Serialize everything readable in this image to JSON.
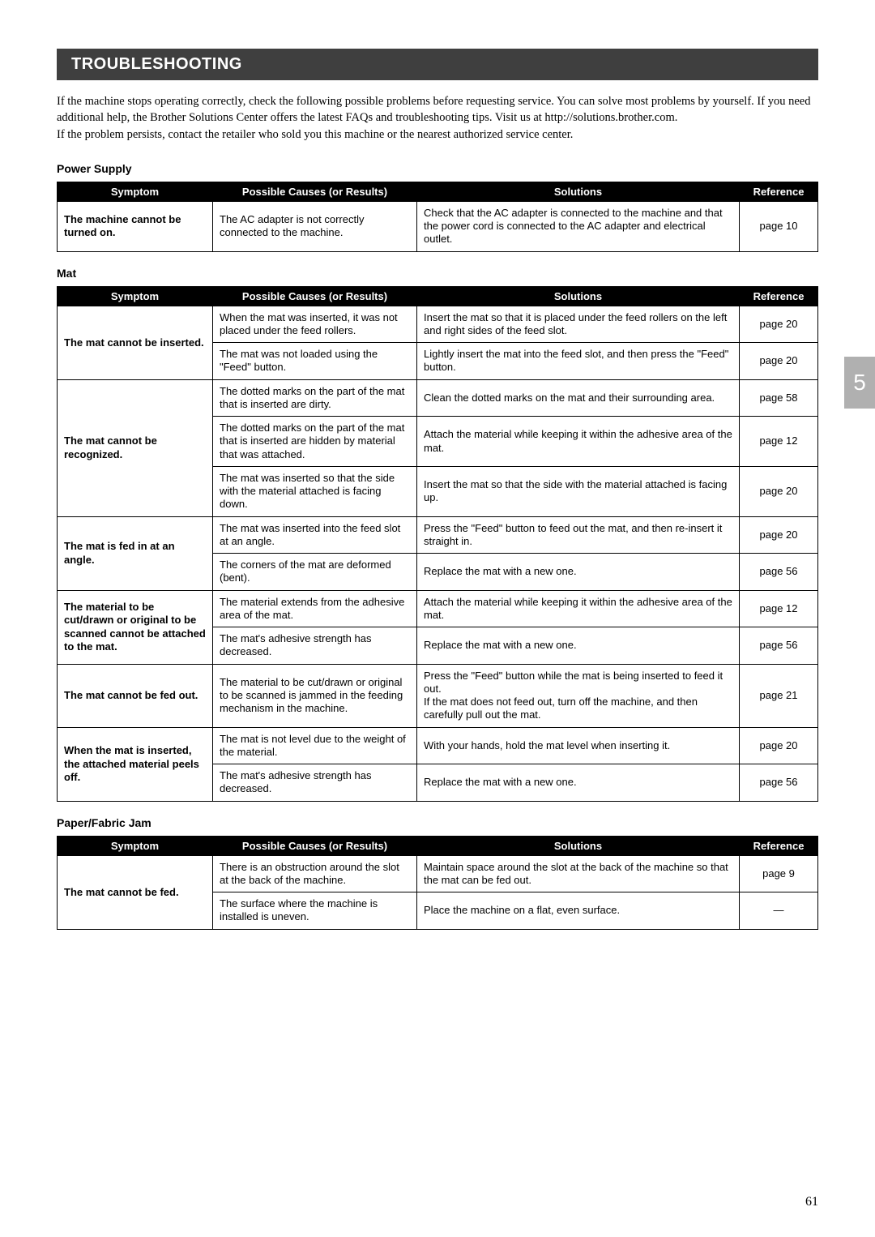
{
  "title": "TROUBLESHOOTING",
  "intro": "If the machine stops operating correctly, check the following possible problems before requesting service. You can solve most problems by yourself. If you need additional help, the Brother Solutions Center offers the latest FAQs and troubleshooting tips. Visit us at http://solutions.brother.com.\nIf the problem persists, contact the retailer who sold you this machine or the nearest authorized service center.",
  "headers": {
    "symptom": "Symptom",
    "cause": "Possible Causes (or Results)",
    "solution": "Solutions",
    "reference": "Reference"
  },
  "sideTab": "5",
  "pageNumber": "61",
  "sections": [
    {
      "label": "Power Supply",
      "rows": [
        {
          "symptom": "The machine cannot be turned on.",
          "cause": "The AC adapter is not correctly connected to the machine.",
          "solution": "Check that the AC adapter is connected to the machine and that the power cord is connected to the AC adapter and electrical outlet.",
          "reference": "page 10",
          "symRowspan": 1
        }
      ]
    },
    {
      "label": "Mat",
      "rows": [
        {
          "symptom": "The mat cannot be inserted.",
          "symRowspan": 2,
          "cause": "When the mat was inserted, it was not placed under the feed rollers.",
          "solution": "Insert the mat so that it is placed under the feed rollers on the left and right sides of the feed slot.",
          "reference": "page 20"
        },
        {
          "cause": "The mat was not loaded using the \"Feed\" button.",
          "solution": "Lightly insert the mat into the feed slot, and then press the \"Feed\" button.",
          "reference": "page 20"
        },
        {
          "symptom": "The mat cannot be recognized.",
          "symRowspan": 3,
          "cause": "The dotted marks on the part of the mat that is inserted are dirty.",
          "solution": "Clean the dotted marks on the mat and their surrounding area.",
          "reference": "page 58"
        },
        {
          "cause": "The dotted marks on the part of the mat that is inserted are hidden by material that was attached.",
          "solution": "Attach the material while keeping it within the adhesive area of the mat.",
          "reference": "page 12"
        },
        {
          "cause": "The mat was inserted so that the side with the material attached is facing down.",
          "solution": "Insert the mat so that the side with the material attached is facing up.",
          "reference": "page 20"
        },
        {
          "symptom": "The mat is fed in at an angle.",
          "symRowspan": 2,
          "cause": "The mat was inserted into the feed slot at an angle.",
          "solution": "Press the \"Feed\" button to feed out the mat, and then re-insert it straight in.",
          "reference": "page 20"
        },
        {
          "cause": "The corners of the mat are deformed (bent).",
          "solution": "Replace the mat with a new one.",
          "reference": "page 56"
        },
        {
          "symptom": "The material to be cut/drawn or original to be scanned cannot be attached to the mat.",
          "symRowspan": 2,
          "cause": "The material extends from the adhesive area of the mat.",
          "solution": "Attach the material while keeping it within the adhesive area of the mat.",
          "reference": "page 12"
        },
        {
          "cause": "The mat's adhesive strength has decreased.",
          "solution": "Replace the mat with a new one.",
          "reference": "page 56"
        },
        {
          "symptom": "The mat cannot be fed out.",
          "symRowspan": 1,
          "cause": "The material to be cut/drawn or original to be scanned is jammed in the feeding mechanism in the machine.",
          "solution": "Press the \"Feed\" button while the mat is being inserted to feed it out.\nIf the mat does not feed out, turn off the machine, and then carefully pull out the mat.",
          "reference": "page 21"
        },
        {
          "symptom": "When the mat is inserted, the attached material peels off.",
          "symRowspan": 2,
          "cause": "The mat is not level due to the weight of the material.",
          "solution": "With your hands, hold the mat level when inserting it.",
          "reference": "page 20"
        },
        {
          "cause": "The mat's adhesive strength has decreased.",
          "solution": "Replace the mat with a new one.",
          "reference": "page 56"
        }
      ]
    },
    {
      "label": "Paper/Fabric Jam",
      "rows": [
        {
          "symptom": "The mat cannot be fed.",
          "symRowspan": 2,
          "cause": "There is an obstruction around the slot at the back of the machine.",
          "solution": "Maintain space around the slot at the back of the machine so that the mat can be fed out.",
          "reference": "page 9"
        },
        {
          "cause": "The surface where the machine is installed is uneven.",
          "solution": "Place the machine on a flat, even surface.",
          "reference": "—"
        }
      ]
    }
  ]
}
